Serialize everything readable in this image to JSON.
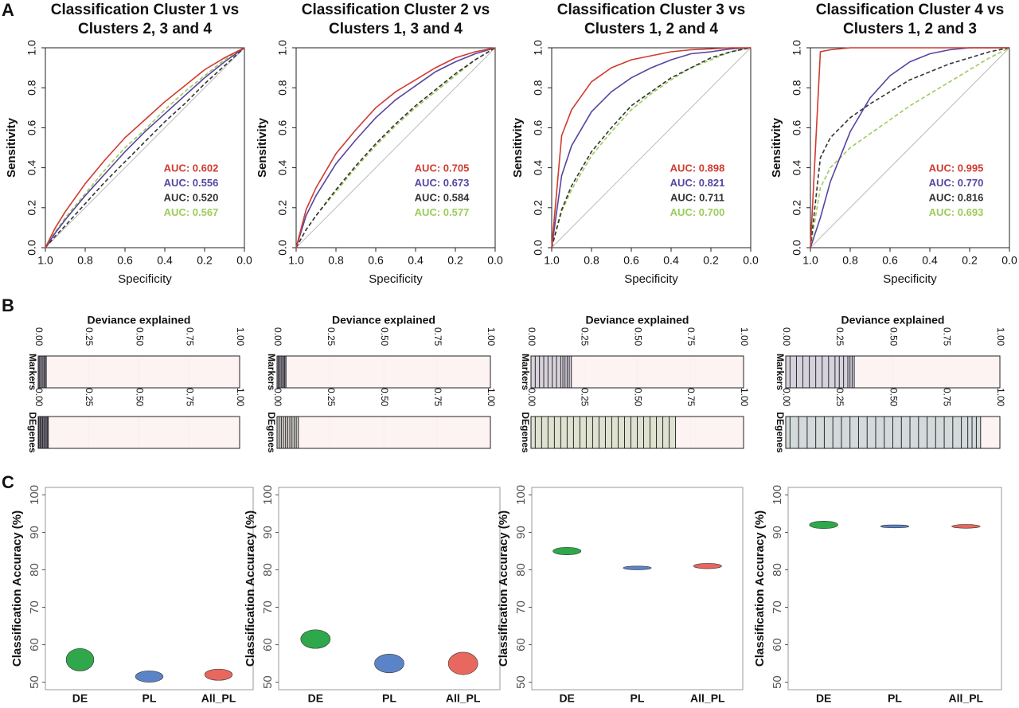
{
  "panel_labels": [
    "A",
    "B",
    "C"
  ],
  "chart_data": [
    {
      "type": "roc",
      "title": [
        "Classification Cluster 1 vs",
        "Clusters 2, 3 and 4"
      ],
      "xlabel": "Specificity",
      "ylabel": "Sensitivity",
      "xlim": [
        1,
        0
      ],
      "ylim": [
        0,
        1
      ],
      "xticks": [
        {
          "value": 1,
          "label": "1.0"
        },
        0.8,
        0.6,
        0.4,
        0.2,
        {
          "value": 0,
          "label": "0.0"
        }
      ],
      "yticks": [
        {
          "value": 0,
          "label": "0.0"
        },
        0.2,
        0.4,
        0.6,
        0.8,
        {
          "value": 1,
          "label": "1.0"
        }
      ],
      "x": [
        1,
        0.95,
        0.9,
        0.8,
        0.7,
        0.6,
        0.5,
        0.4,
        0.3,
        0.2,
        0.1,
        0
      ],
      "series": [
        {
          "color": "#d03a2f",
          "dashed": false,
          "label": "AUC: 0.602",
          "values": [
            0,
            0.1,
            0.18,
            0.32,
            0.44,
            0.55,
            0.64,
            0.73,
            0.81,
            0.89,
            0.95,
            1
          ]
        },
        {
          "color": "#5645a0",
          "dashed": false,
          "label": "AUC: 0.556",
          "values": [
            0,
            0.074,
            0.14,
            0.26,
            0.37,
            0.48,
            0.58,
            0.67,
            0.76,
            0.85,
            0.93,
            1
          ]
        },
        {
          "color": "#333333",
          "dashed": true,
          "label": "AUC: 0.520",
          "values": [
            0,
            0.058,
            0.11,
            0.22,
            0.33,
            0.43,
            0.53,
            0.63,
            0.72,
            0.82,
            0.91,
            1
          ]
        },
        {
          "color": "#9ccc5a",
          "dashed": true,
          "label": "AUC: 0.567",
          "values": [
            0,
            0.08,
            0.15,
            0.27,
            0.39,
            0.5,
            0.59,
            0.69,
            0.78,
            0.86,
            0.94,
            1
          ]
        }
      ]
    },
    {
      "type": "roc",
      "title": [
        "Classification Cluster 2 vs",
        "Clusters 1, 3 and 4"
      ],
      "xlabel": "Specificity",
      "ylabel": "Sensitivity",
      "xlim": [
        1,
        0
      ],
      "ylim": [
        0,
        1
      ],
      "xticks": [
        {
          "value": 1,
          "label": "1.0"
        },
        0.8,
        0.6,
        0.4,
        0.2,
        {
          "value": 0,
          "label": "0.0"
        }
      ],
      "yticks": [
        {
          "value": 0,
          "label": "0.0"
        },
        0.2,
        0.4,
        0.6,
        0.8,
        {
          "value": 1,
          "label": "1.0"
        }
      ],
      "x": [
        1,
        0.95,
        0.9,
        0.8,
        0.7,
        0.6,
        0.5,
        0.4,
        0.3,
        0.2,
        0.1,
        0
      ],
      "series": [
        {
          "color": "#d03a2f",
          "dashed": false,
          "label": "AUC: 0.705",
          "values": [
            0,
            0.19,
            0.3,
            0.47,
            0.59,
            0.7,
            0.78,
            0.84,
            0.9,
            0.95,
            0.98,
            1
          ]
        },
        {
          "color": "#5645a0",
          "dashed": false,
          "label": "AUC: 0.673",
          "values": [
            0,
            0.16,
            0.26,
            0.42,
            0.54,
            0.65,
            0.74,
            0.81,
            0.88,
            0.93,
            0.97,
            1
          ]
        },
        {
          "color": "#333333",
          "dashed": true,
          "label": "AUC: 0.584",
          "values": [
            0,
            0.09,
            0.16,
            0.29,
            0.41,
            0.52,
            0.62,
            0.71,
            0.79,
            0.87,
            0.94,
            1
          ]
        },
        {
          "color": "#9ccc5a",
          "dashed": true,
          "label": "AUC: 0.577",
          "values": [
            0,
            0.09,
            0.16,
            0.28,
            0.4,
            0.51,
            0.61,
            0.7,
            0.78,
            0.86,
            0.94,
            1
          ]
        }
      ]
    },
    {
      "type": "roc",
      "title": [
        "Classification Cluster 3 vs",
        "Clusters 1, 2 and 4"
      ],
      "xlabel": "Specificity",
      "ylabel": "Sensitivity",
      "xlim": [
        1,
        0
      ],
      "ylim": [
        0,
        1
      ],
      "xticks": [
        {
          "value": 1,
          "label": "1.0"
        },
        0.8,
        0.6,
        0.4,
        0.2,
        {
          "value": 0,
          "label": "0.0"
        }
      ],
      "yticks": [
        {
          "value": 0,
          "label": "0.0"
        },
        0.2,
        0.4,
        0.6,
        0.8,
        {
          "value": 1,
          "label": "1.0"
        }
      ],
      "x": [
        1,
        0.95,
        0.9,
        0.8,
        0.7,
        0.6,
        0.5,
        0.4,
        0.3,
        0.2,
        0.1,
        0
      ],
      "series": [
        {
          "color": "#d03a2f",
          "dashed": false,
          "label": "AUC: 0.898",
          "values": [
            0,
            0.56,
            0.69,
            0.83,
            0.9,
            0.94,
            0.96,
            0.98,
            0.99,
            0.995,
            1,
            1
          ]
        },
        {
          "color": "#5645a0",
          "dashed": false,
          "label": "AUC: 0.821",
          "values": [
            0,
            0.36,
            0.51,
            0.68,
            0.78,
            0.85,
            0.9,
            0.94,
            0.97,
            0.98,
            0.995,
            1
          ]
        },
        {
          "color": "#333333",
          "dashed": true,
          "label": "AUC: 0.711",
          "values": [
            0,
            0.19,
            0.31,
            0.48,
            0.6,
            0.71,
            0.78,
            0.85,
            0.9,
            0.95,
            0.98,
            1
          ]
        },
        {
          "color": "#9ccc5a",
          "dashed": true,
          "label": "AUC: 0.700",
          "values": [
            0,
            0.18,
            0.29,
            0.46,
            0.58,
            0.69,
            0.77,
            0.84,
            0.9,
            0.94,
            0.98,
            1
          ]
        }
      ]
    },
    {
      "type": "roc",
      "title": [
        "Classification Cluster 4 vs",
        "Clusters 1, 2 and 3"
      ],
      "xlabel": "Specificity",
      "ylabel": "Sensitivity",
      "xlim": [
        1,
        0
      ],
      "ylim": [
        0,
        1
      ],
      "xticks": [
        {
          "value": 1,
          "label": "1.0"
        },
        0.8,
        0.6,
        0.4,
        0.2,
        {
          "value": 0,
          "label": "0.0"
        }
      ],
      "yticks": [
        {
          "value": 0,
          "label": "0.0"
        },
        0.2,
        0.4,
        0.6,
        0.8,
        {
          "value": 1,
          "label": "1.0"
        }
      ],
      "x": [
        1,
        0.95,
        0.9,
        0.8,
        0.7,
        0.6,
        0.5,
        0.4,
        0.3,
        0.2,
        0.1,
        0
      ],
      "series": [
        {
          "color": "#d03a2f",
          "dashed": false,
          "label": "AUC: 0.995",
          "values": [
            0,
            0.98,
            0.99,
            1,
            1,
            1,
            1,
            1,
            1,
            1,
            1,
            1
          ]
        },
        {
          "color": "#5645a0",
          "dashed": false,
          "label": "AUC: 0.770",
          "values": [
            0,
            0.15,
            0.33,
            0.58,
            0.75,
            0.86,
            0.93,
            0.97,
            0.99,
            1,
            1,
            1
          ]
        },
        {
          "color": "#333333",
          "dashed": true,
          "label": "AUC: 0.816",
          "values": [
            0,
            0.45,
            0.55,
            0.65,
            0.72,
            0.78,
            0.84,
            0.88,
            0.92,
            0.95,
            0.98,
            1
          ]
        },
        {
          "color": "#9ccc5a",
          "dashed": true,
          "label": "AUC: 0.693",
          "values": [
            0,
            0.3,
            0.4,
            0.5,
            0.57,
            0.64,
            0.71,
            0.77,
            0.83,
            0.89,
            0.95,
            1
          ]
        }
      ]
    },
    {
      "type": "strip",
      "title": "Deviance explained",
      "xlim": [
        0,
        1
      ],
      "xticks": [
        {
          "value": 0,
          "label": "0.00"
        },
        0.25,
        {
          "value": 0.5,
          "label": "0.50"
        },
        0.75,
        {
          "value": 1,
          "label": "1.00"
        }
      ],
      "series": [
        {
          "name": "Markers",
          "color": "#6d6a78",
          "values": [
            0.005,
            0.012,
            0.02,
            0.028,
            0.034,
            0.04
          ]
        },
        {
          "name": "DEgenes",
          "color": "#6d6a78",
          "values": [
            0.004,
            0.01,
            0.016,
            0.022,
            0.028,
            0.034,
            0.04,
            0.046,
            0.05
          ]
        }
      ]
    },
    {
      "type": "strip",
      "title": "Deviance explained",
      "xlim": [
        0,
        1
      ],
      "xticks": [
        {
          "value": 0,
          "label": "0.00"
        },
        0.25,
        {
          "value": 0.5,
          "label": "0.50"
        },
        0.75,
        {
          "value": 1,
          "label": "1.00"
        }
      ],
      "series": [
        {
          "name": "Markers",
          "color": "#55525e",
          "values": [
            0.006,
            0.014,
            0.022,
            0.03,
            0.036,
            0.042
          ]
        },
        {
          "name": "DEgenes",
          "color": "#b8bca8",
          "values": [
            0.01,
            0.02,
            0.03,
            0.04,
            0.05,
            0.06,
            0.07,
            0.08,
            0.09,
            0.1
          ]
        }
      ]
    },
    {
      "type": "strip",
      "title": "Deviance explained",
      "xlim": [
        0,
        1
      ],
      "xticks": [
        {
          "value": 0,
          "label": "0.00"
        },
        0.25,
        {
          "value": 0.5,
          "label": "0.50"
        },
        0.75,
        {
          "value": 1,
          "label": "1.00"
        }
      ],
      "series": [
        {
          "name": "Markers",
          "color": "#b9b6c4",
          "values": [
            0.02,
            0.04,
            0.06,
            0.08,
            0.1,
            0.12,
            0.14,
            0.15,
            0.16,
            0.17,
            0.18,
            0.19
          ]
        },
        {
          "name": "DEgenes",
          "color": "#c6d4b0",
          "values": [
            0.02,
            0.05,
            0.08,
            0.11,
            0.14,
            0.17,
            0.2,
            0.23,
            0.26,
            0.29,
            0.32,
            0.35,
            0.38,
            0.41,
            0.44,
            0.47,
            0.5,
            0.53,
            0.56,
            0.59,
            0.62,
            0.65,
            0.68
          ]
        }
      ]
    },
    {
      "type": "strip",
      "title": "Deviance explained",
      "xlim": [
        0,
        1
      ],
      "xticks": [
        {
          "value": 0,
          "label": "0.00"
        },
        0.25,
        {
          "value": 0.5,
          "label": "0.50"
        },
        0.75,
        {
          "value": 1,
          "label": "1.00"
        }
      ],
      "series": [
        {
          "name": "Markers",
          "color": "#b4b6c8",
          "values": [
            0.02,
            0.05,
            0.08,
            0.11,
            0.14,
            0.17,
            0.2,
            0.23,
            0.25,
            0.27,
            0.29,
            0.3,
            0.31,
            0.32
          ]
        },
        {
          "name": "DEgenes",
          "color": "#b0c4c4",
          "values": [
            0.02,
            0.06,
            0.1,
            0.14,
            0.18,
            0.22,
            0.26,
            0.3,
            0.34,
            0.38,
            0.42,
            0.46,
            0.5,
            0.54,
            0.58,
            0.62,
            0.66,
            0.7,
            0.74,
            0.78,
            0.82,
            0.85,
            0.87,
            0.89,
            0.91
          ]
        }
      ]
    },
    {
      "type": "violin",
      "ylabel": "Classification Accuracy (%)",
      "categories": [
        "DE",
        "PL",
        "All_PL"
      ],
      "values": [
        56,
        51.5,
        52
      ],
      "spread": [
        3,
        1.5,
        1.5
      ],
      "colors": [
        "#2ea84a",
        "#5b84c8",
        "#e8675e"
      ],
      "ylim": [
        48,
        102
      ],
      "yticks": [
        50,
        60,
        70,
        80,
        90,
        100
      ]
    },
    {
      "type": "violin",
      "ylabel": "Classification Accuracy (%)",
      "categories": [
        "DE",
        "PL",
        "All_PL"
      ],
      "values": [
        61.5,
        55,
        55
      ],
      "spread": [
        2.5,
        2.5,
        3
      ],
      "colors": [
        "#2ea84a",
        "#5b84c8",
        "#e8675e"
      ],
      "ylim": [
        48,
        102
      ],
      "yticks": [
        50,
        60,
        70,
        80,
        90,
        100
      ]
    },
    {
      "type": "violin",
      "ylabel": "Classification Accuracy (%)",
      "categories": [
        "DE",
        "PL",
        "All_PL"
      ],
      "values": [
        85,
        80.5,
        81
      ],
      "spread": [
        1,
        0.5,
        0.7
      ],
      "colors": [
        "#2ea84a",
        "#5b84c8",
        "#e8675e"
      ],
      "ylim": [
        48,
        102
      ],
      "yticks": [
        50,
        60,
        70,
        80,
        90,
        100
      ]
    },
    {
      "type": "violin",
      "ylabel": "Classification Accuracy (%)",
      "categories": [
        "DE",
        "PL",
        "All_PL"
      ],
      "values": [
        92,
        91.6,
        91.6
      ],
      "spread": [
        1,
        0.4,
        0.5
      ],
      "colors": [
        "#2ea84a",
        "#5b84c8",
        "#e8675e"
      ],
      "ylim": [
        48,
        102
      ],
      "yticks": [
        50,
        60,
        70,
        80,
        90,
        100
      ]
    }
  ]
}
